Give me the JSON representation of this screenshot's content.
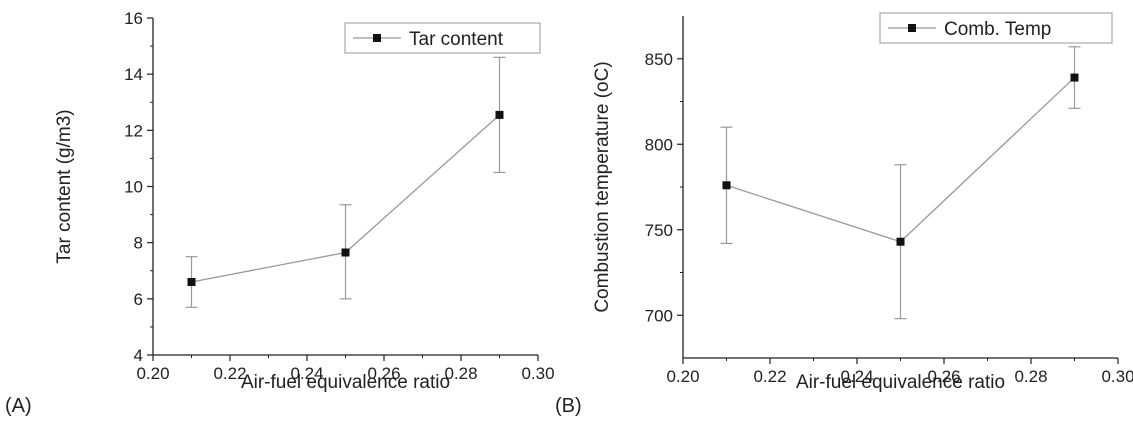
{
  "chart_data": [
    {
      "type": "line",
      "panel_label": "(A)",
      "xlabel": "Air-fuel equivalence ratio",
      "ylabel": "Tar content (g/m3)",
      "xlim": [
        0.2,
        0.3
      ],
      "ylim": [
        4,
        16
      ],
      "xticks": [
        "0.20",
        "0.22",
        "0.24",
        "0.26",
        "0.28",
        "0.30"
      ],
      "yticks": [
        "4",
        "6",
        "8",
        "10",
        "12",
        "14",
        "16"
      ],
      "legend_position": "top-right",
      "series": [
        {
          "name": "Tar content",
          "x": [
            0.21,
            0.25,
            0.29
          ],
          "y": [
            6.6,
            7.65,
            12.55
          ],
          "error_low": [
            5.7,
            6.0,
            10.5
          ],
          "error_high": [
            7.5,
            9.35,
            14.6
          ]
        }
      ],
      "color": "#999999"
    },
    {
      "type": "line",
      "panel_label": "(B)",
      "xlabel": "Air-fuel equivalence ratio",
      "ylabel": "Combustion temperature (oC)",
      "xlim": [
        0.2,
        0.3
      ],
      "ylim": [
        675,
        875
      ],
      "xticks": [
        "0.20",
        "0.22",
        "0.24",
        "0.26",
        "0.28",
        "0.30"
      ],
      "yticks": [
        "700",
        "750",
        "800",
        "850"
      ],
      "legend_position": "top-right",
      "series": [
        {
          "name": "Comb. Temp",
          "x": [
            0.21,
            0.25,
            0.29
          ],
          "y": [
            776,
            743,
            839
          ],
          "error_low": [
            742,
            698,
            821
          ],
          "error_high": [
            810,
            788,
            857
          ]
        }
      ],
      "color": "#999999"
    }
  ]
}
